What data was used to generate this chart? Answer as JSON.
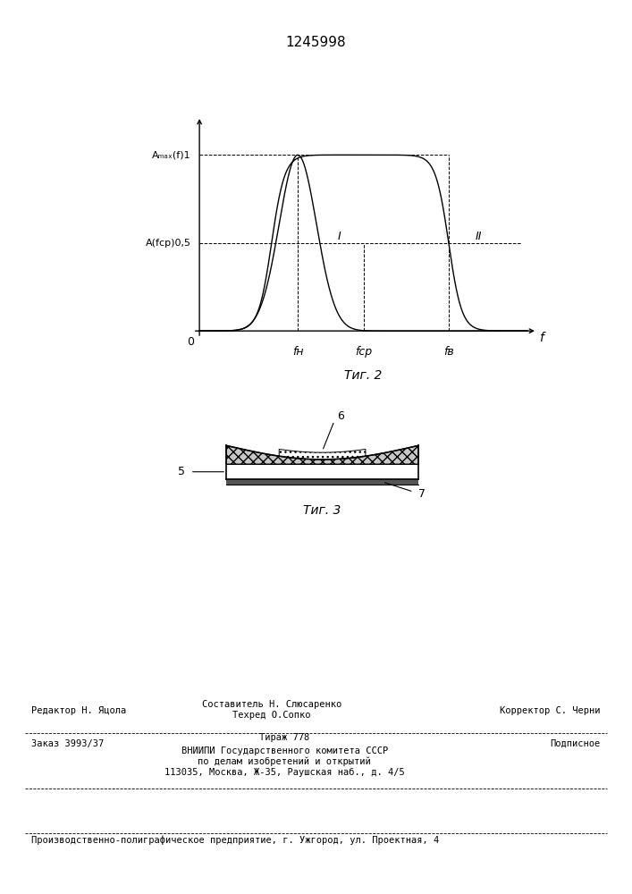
{
  "patent_number": "1245998",
  "fig2_caption": "Τиг. 2",
  "fig3_caption": "Τиг. 3",
  "curve1_label": "I",
  "curve2_label": "II",
  "xlabel": "f",
  "origin_label": "0",
  "fn_label": "fн",
  "fcp_label": "fср",
  "fb_label": "fв",
  "ylabel_top": "Aₘₐₓ(f)1",
  "ylabel_mid": "A(fср)0,5",
  "footer_line1_left": "Редактор Н. Яцола",
  "footer_line1_center1": "Составитель Н. Слюсаренко",
  "footer_line1_center2": "Техред О.Сопко",
  "footer_line1_right": "Корректор С. Черни",
  "footer_line2_left": "Заказ 3993/37",
  "footer_line2_center": "Тираж 778",
  "footer_line2_right": "Подписное",
  "footer_line3": "ВНИИПИ Государственного комитета СССР",
  "footer_line4": "по делам изобретений и открытий",
  "footer_line5": "113035, Москва, Ж-35, Раушская наб., д. 4/5",
  "footer_bottom": "Производственно-полиграфическое предприятие, г. Ужгород, ул. Проектная, 4"
}
